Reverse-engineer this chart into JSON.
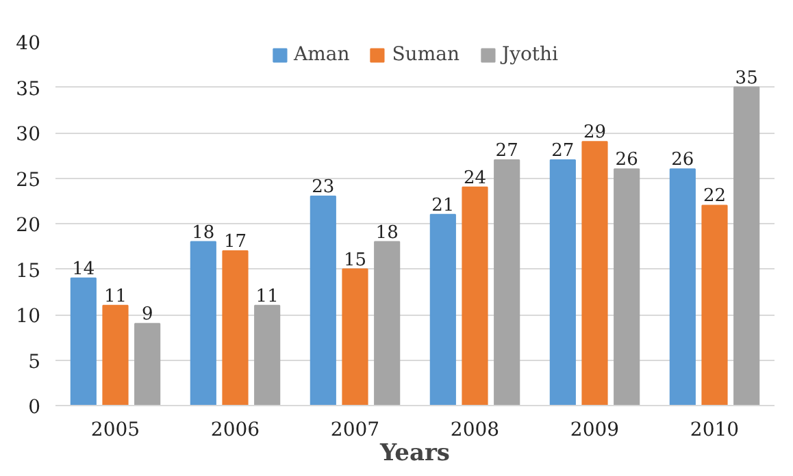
{
  "chart_data": {
    "type": "bar",
    "xlabel": "Years",
    "categories": [
      "2005",
      "2006",
      "2007",
      "2008",
      "2009",
      "2010"
    ],
    "series": [
      {
        "name": "Aman",
        "color": "#5b9bd5",
        "values": [
          14,
          18,
          23,
          21,
          27,
          26
        ]
      },
      {
        "name": "Suman",
        "color": "#ed7d31",
        "values": [
          11,
          17,
          15,
          24,
          29,
          22
        ]
      },
      {
        "name": "Jyothi",
        "color": "#a5a5a5",
        "values": [
          9,
          11,
          18,
          27,
          26,
          35
        ]
      }
    ],
    "ylim": [
      0,
      40
    ],
    "yticks": [
      0,
      5,
      10,
      15,
      20,
      25,
      30,
      35,
      40
    ],
    "grid": "y",
    "legend": "top",
    "data_labels": true
  }
}
